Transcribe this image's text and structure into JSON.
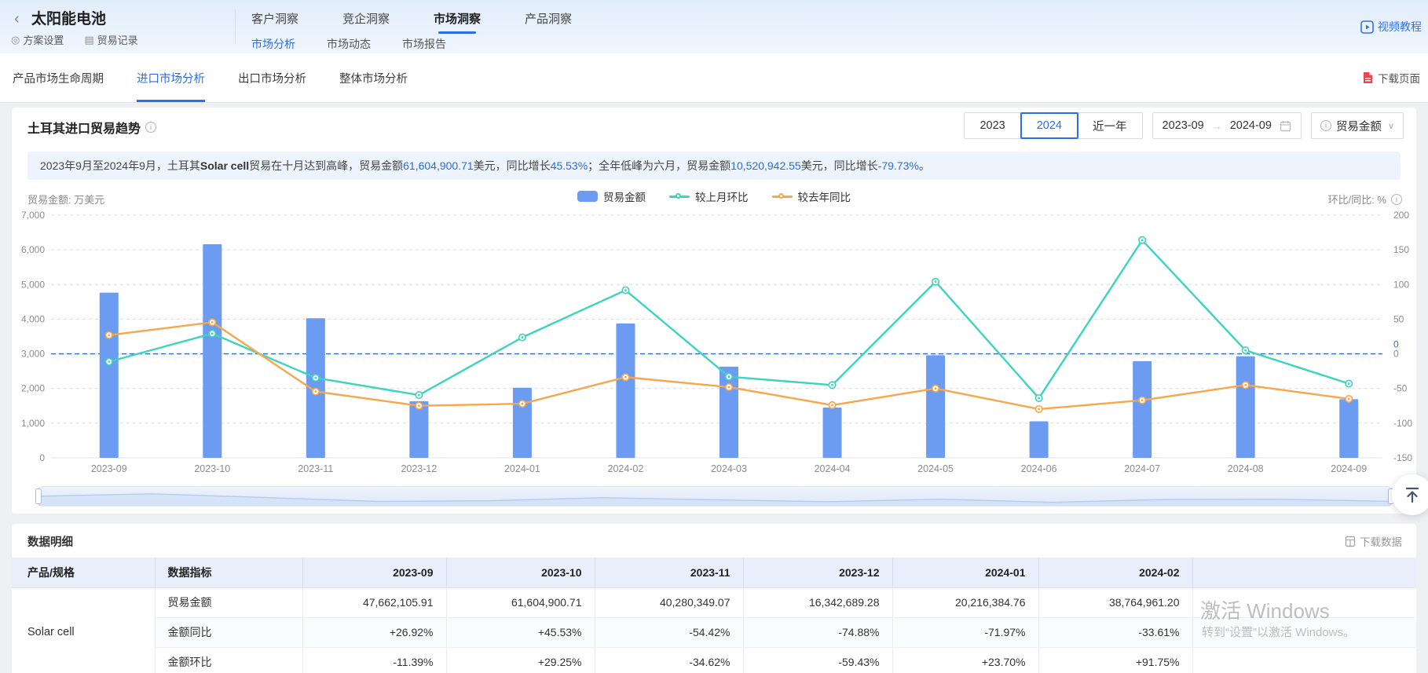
{
  "topbar": {
    "back_icon": "‹",
    "title": "太阳能电池",
    "menu": [
      {
        "label": "方案设置",
        "icon": "target-icon",
        "glyph": "◎"
      },
      {
        "label": "贸易记录",
        "icon": "document-icon",
        "glyph": "▤"
      }
    ],
    "tabs": [
      "客户洞察",
      "竞企洞察",
      "市场洞察",
      "产品洞察"
    ],
    "active_tab": "市场洞察",
    "subtabs": [
      "市场分析",
      "市场动态",
      "市场报告"
    ],
    "active_subtab": "市场分析",
    "video_label": "视频教程"
  },
  "nav": {
    "items": [
      "产品市场生命周期",
      "进口市场分析",
      "出口市场分析",
      "整体市场分析"
    ],
    "active": "进口市场分析",
    "download_label": "下载页面"
  },
  "panel": {
    "title": "土耳其进口贸易趋势",
    "year_buttons": [
      "2023",
      "2024",
      "近一年"
    ],
    "active_year": "2024",
    "date_from": "2023-09",
    "date_to": "2024-09",
    "range_arrow": "→",
    "metric_select": "贸易金额",
    "chevron": "∨"
  },
  "summary_segments": [
    {
      "t": "2023年9月至2024年9月，土耳其"
    },
    {
      "t": "Solar cell",
      "b": 1
    },
    {
      "t": "贸易在十月达到高峰，贸易金额"
    },
    {
      "t": "61,604,900.71",
      "c": 1
    },
    {
      "t": "美元，同比增长"
    },
    {
      "t": "45.53%",
      "c": 1
    },
    {
      "t": "；全年低峰为六月，贸易金额"
    },
    {
      "t": "10,520,942.55",
      "c": 1
    },
    {
      "t": "美元，同比增长"
    },
    {
      "t": "-79.73%",
      "c": 1
    },
    {
      "t": "。"
    }
  ],
  "chart_data": {
    "type": "bar",
    "categories": [
      "2023-09",
      "2023-10",
      "2023-11",
      "2023-12",
      "2024-01",
      "2024-02",
      "2024-03",
      "2024-04",
      "2024-05",
      "2024-06",
      "2024-07",
      "2024-08",
      "2024-09"
    ],
    "series": [
      {
        "name": "贸易金额",
        "type": "bar",
        "axis": "left",
        "color": "#6b9cf2",
        "values": [
          4766.21,
          6160.49,
          4028.03,
          1634.27,
          2021.64,
          3876.5,
          2630,
          1450,
          2960,
          1052.09,
          2790,
          2930,
          1690
        ]
      },
      {
        "name": "较上月环比",
        "type": "line",
        "axis": "right",
        "color": "#3cd3bf",
        "values": [
          -11.39,
          29.25,
          -34.62,
          -59.43,
          23.7,
          91.75,
          -33,
          -45,
          104,
          -64,
          164,
          5,
          -43
        ]
      },
      {
        "name": "较去年同比",
        "type": "line",
        "axis": "right",
        "color": "#f8a64b",
        "values": [
          26.92,
          45.53,
          -54.42,
          -74.88,
          -71.97,
          -33.61,
          -48,
          -74,
          -50,
          -79.73,
          -67,
          -45,
          -65
        ]
      }
    ],
    "left_axis": {
      "title": "贸易金额: 万美元",
      "min": 0,
      "max": 7000,
      "step": 1000
    },
    "right_axis": {
      "title": "环比/同比: %",
      "min": -150,
      "max": 200,
      "step": 50
    },
    "zero_line": {
      "value": 0,
      "color": "#2b6cd9",
      "label": "0"
    },
    "grid": "dashed",
    "legend_position": "top-center"
  },
  "table": {
    "title": "数据明细",
    "download_label": "下载数据",
    "col_product": "产品/规格",
    "col_metric": "数据指标",
    "months": [
      "2023-09",
      "2023-10",
      "2023-11",
      "2023-12",
      "2024-01",
      "2024-02"
    ],
    "product": "Solar cell",
    "rows": [
      {
        "metric": "贸易金额",
        "values": [
          "47,662,105.91",
          "61,604,900.71",
          "40,280,349.07",
          "16,342,689.28",
          "20,216,384.76",
          "38,764,961.20"
        ]
      },
      {
        "metric": "金额同比",
        "values": [
          "+26.92%",
          "+45.53%",
          "-54.42%",
          "-74.88%",
          "-71.97%",
          "-33.61%"
        ]
      },
      {
        "metric": "金额环比",
        "values": [
          "-11.39%",
          "+29.25%",
          "-34.62%",
          "-59.43%",
          "+23.70%",
          "+91.75%"
        ]
      }
    ]
  },
  "watermark": {
    "line1": "激活 Windows",
    "line2": "转到“设置”以激活 Windows。"
  },
  "colors": {
    "accent_blue": "#2a6ee9",
    "link_blue": "#2b74f0",
    "bar_blue": "#6b9cf2",
    "teal": "#3cd3bf",
    "orange": "#f8a64b",
    "positive_red": "#e03c3c",
    "negative_green": "#27b56c",
    "summary_bg": "#edf4fd",
    "table_header_bg": "#e9eefa",
    "zero_line_blue": "#2b6cd9"
  }
}
